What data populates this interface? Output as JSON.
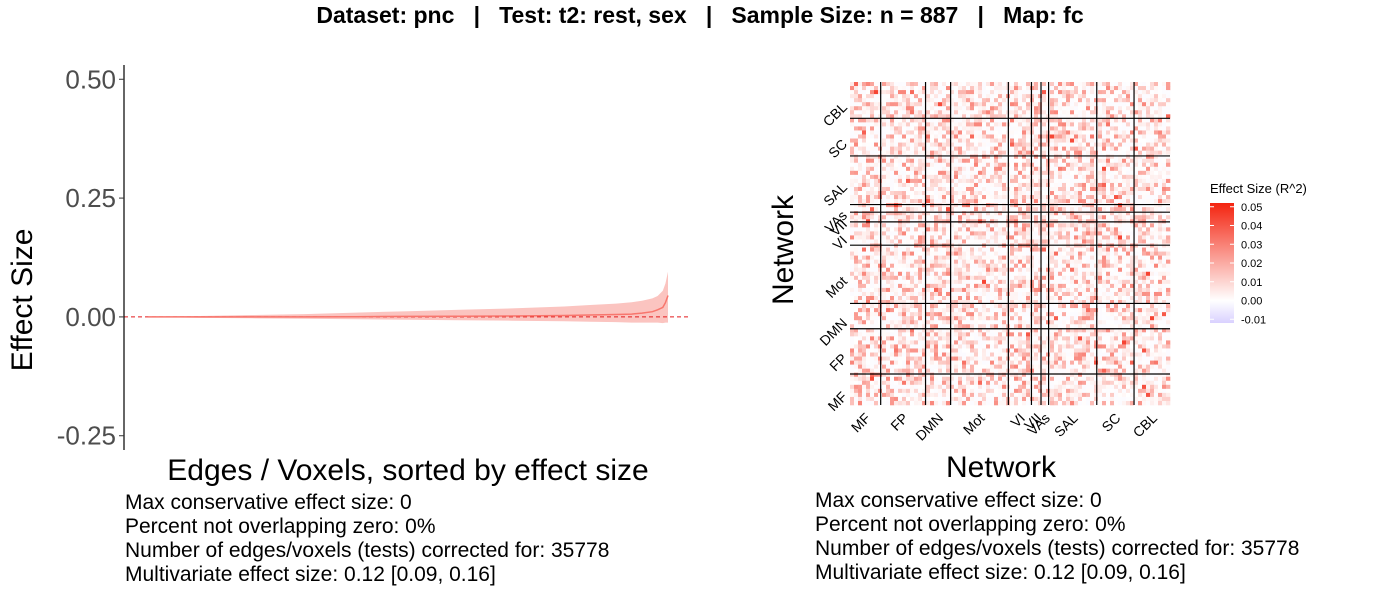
{
  "title": "Dataset: pnc   |   Test: t2: rest, sex   |   Sample Size: n = 887   |   Map: fc",
  "colors": {
    "line": "#f8766d",
    "band": "#fbc4c0",
    "zero_line": "#e41a1c",
    "heat_high": "#f42410",
    "heat_mid": "#ffffff",
    "heat_low": "#d9d1ff",
    "divider": "#000000"
  },
  "chart_data": [
    {
      "type": "line",
      "description_of_shape": "sorted effect-size curve with confidence band",
      "xlabel": "Edges / Voxels, sorted by effect size",
      "ylabel": "Effect Size",
      "ylim": [
        -0.28,
        0.53
      ],
      "yticks": [
        -0.25,
        0.0,
        0.25,
        0.5
      ],
      "ytick_labels": [
        "-0.25",
        "0.00",
        "0.25",
        "0.50"
      ],
      "reference_line_y": 0,
      "n_points": 35778,
      "x": [
        0,
        0.1,
        0.2,
        0.3,
        0.4,
        0.5,
        0.6,
        0.7,
        0.8,
        0.85,
        0.9,
        0.93,
        0.95,
        0.97,
        0.98,
        0.99,
        0.995,
        1.0
      ],
      "estimate": [
        0,
        0,
        0,
        0,
        0.0005,
        0.001,
        0.0015,
        0.002,
        0.003,
        0.004,
        0.005,
        0.006,
        0.008,
        0.011,
        0.015,
        0.02,
        0.03,
        0.045
      ],
      "upper": [
        0.0,
        0.002,
        0.004,
        0.006,
        0.009,
        0.012,
        0.015,
        0.018,
        0.022,
        0.025,
        0.028,
        0.031,
        0.034,
        0.039,
        0.044,
        0.055,
        0.07,
        0.095
      ],
      "lower": [
        0.0,
        -0.002,
        -0.003,
        -0.004,
        -0.005,
        -0.006,
        -0.007,
        -0.008,
        -0.009,
        -0.01,
        -0.011,
        -0.012,
        -0.012,
        -0.012,
        -0.012,
        -0.013,
        -0.012,
        -0.012
      ],
      "stats": [
        "Max conservative effect size: 0",
        "Percent not overlapping zero: 0%",
        "Number of edges/voxels (tests) corrected for: 35778",
        "Multivariate effect size: 0.12 [0.09, 0.16]"
      ]
    },
    {
      "type": "heatmap",
      "xlabel": "Network",
      "ylabel": "Network",
      "networks_x": [
        "MF",
        "FP",
        "DMN",
        "Mot",
        "VI",
        "VII",
        "VAs",
        "SAL",
        "SC",
        "CBL"
      ],
      "networks_y_bottom_to_top": [
        "MF",
        "FP",
        "DMN",
        "Mot",
        "VI",
        "VII",
        "VAs",
        "SAL",
        "SC",
        "CBL"
      ],
      "network_fractions": [
        0.093,
        0.136,
        0.076,
        0.175,
        0.07,
        0.029,
        0.023,
        0.146,
        0.113,
        0.109
      ],
      "legend_title": "Effect Size (R^2)",
      "legend_ticks": [
        0.05,
        0.04,
        0.03,
        0.02,
        0.01,
        0.0,
        -0.01
      ],
      "legend_tick_labels": [
        "0.05",
        "0.04",
        "0.03",
        "0.02",
        "0.01",
        "0.00",
        "-0.01"
      ],
      "value_range": [
        -0.012,
        0.052
      ],
      "stats": [
        "Max conservative effect size: 0",
        "Percent not overlapping zero: 0%",
        "Number of edges/voxels (tests) corrected for: 35778",
        "Multivariate effect size: 0.12 [0.09, 0.16]"
      ]
    }
  ]
}
